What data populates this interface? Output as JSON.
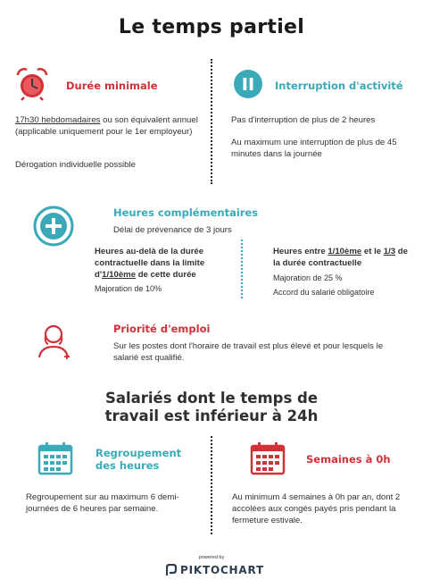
{
  "title": "Le temps partiel",
  "duree": {
    "heading": "Durée minimale",
    "line1_u": "17h30 hebdomadaires",
    "line1_rest": " ou son équivalent annuel (applicable uniquement pour le 1er employeur)",
    "line2": "Dérogation individuelle possible"
  },
  "interruption": {
    "heading": "Interruption d'activité",
    "line1": "Pas d'interruption de plus de 2 heures",
    "line2": "Au maximum une interruption de plus de 45 minutes dans la journée"
  },
  "heures": {
    "heading": "Heures complémentaires",
    "delai": "Délai de prévenance de 3 jours",
    "left_a": "Heures au-delà de la durée contractuelle dans la limite d'",
    "left_u": "1/10ème",
    "left_b": " de cette durée",
    "left_maj": "Majoration de 10%",
    "right_a": "Heures entre ",
    "right_u1": "1/10ème",
    "right_mid": " et le ",
    "right_u2": "1/3",
    "right_b": " de la durée contractuelle",
    "right_maj": "Majoration de 25 %",
    "right_accord": "Accord du salarié obligatoire"
  },
  "priorite": {
    "heading": "Priorité d'emploi",
    "text": "Sur les postes dont l'horaire de travail est plus élevé et pour lesquels le salarié est qualifié."
  },
  "section2": {
    "heading_line1": "Salariés dont le temps de",
    "heading_line2": "travail est inférieur à 24h"
  },
  "regroupement": {
    "heading_line1": "Regroupement",
    "heading_line2": "des heures",
    "text": "Regroupement sur au maximum 6 demi-journées de 6 heures par semaine."
  },
  "semaines": {
    "heading": "Semaines à 0h",
    "text": "Au minimum 4 semaines à 0h par an, dont 2 accolées aux congés payés pris pendant la fermeture estivale."
  },
  "footer": {
    "powered": "powered by",
    "brand": "PIKTOCHART"
  },
  "colors": {
    "red": "#d03238",
    "teal": "#3aa9b8",
    "navy": "#143a6e"
  },
  "icons": [
    "alarm-clock-icon",
    "pause-icon",
    "plus-circle-icon",
    "person-icon",
    "calendar-icon",
    "piktochart-logo-icon"
  ]
}
